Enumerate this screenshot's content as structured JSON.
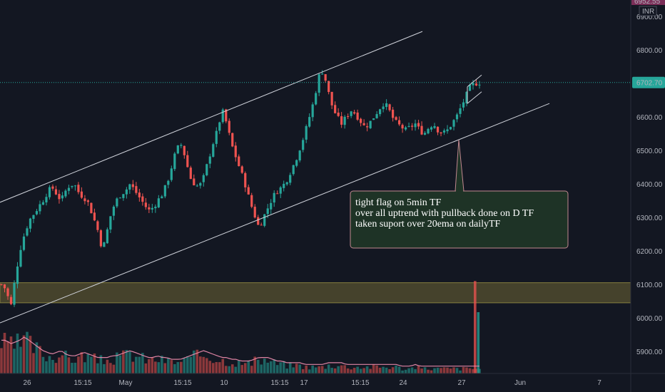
{
  "chart_data": {
    "type": "candlestick",
    "currency": "INR",
    "price_axis": {
      "ticks": [
        6900,
        6800,
        6700,
        6600,
        6500,
        6400,
        6300,
        6200,
        6100,
        6000,
        5900
      ],
      "tick_labels": [
        "6900.00",
        "6800.00",
        "6700.00",
        "6600.00",
        "6500.00",
        "6400.00",
        "6300.00",
        "6200.00",
        "6100.00",
        "6000.00",
        "5900.00"
      ],
      "top_partial_label": "6952.55",
      "current_price": 6702.7,
      "current_price_label": "6702.70",
      "range": [
        5835,
        6985
      ]
    },
    "time_axis": {
      "labels": [
        "26",
        "15:15",
        "May",
        "15:15",
        "10",
        "15:15",
        "17",
        "15:15",
        "24",
        "27",
        "Jun",
        "7"
      ]
    },
    "support_zone": {
      "low": 6045,
      "high": 6105
    },
    "channel": {
      "upper": {
        "from": 6345,
        "to": 6855
      },
      "lower": {
        "from": 5985,
        "to": 6640
      }
    },
    "flag": {
      "upper": [
        6690,
        6725
      ],
      "lower": [
        6640,
        6675
      ]
    },
    "annotation": {
      "lines": [
        "tight flag on 5min TF",
        "over all uptrend with pullback done on D TF",
        "taken suport over 20ema on dailyTF"
      ]
    },
    "series_path": [
      6100,
      6085,
      6030,
      6120,
      6200,
      6250,
      6290,
      6310,
      6330,
      6350,
      6375,
      6390,
      6370,
      6350,
      6380,
      6400,
      6395,
      6370,
      6360,
      6340,
      6300,
      6260,
      6200,
      6260,
      6320,
      6350,
      6370,
      6380,
      6400,
      6380,
      6360,
      6340,
      6320,
      6330,
      6350,
      6370,
      6400,
      6450,
      6500,
      6520,
      6480,
      6420,
      6400,
      6390,
      6420,
      6470,
      6520,
      6560,
      6620,
      6580,
      6520,
      6480,
      6440,
      6400,
      6350,
      6310,
      6270,
      6300,
      6330,
      6360,
      6380,
      6390,
      6410,
      6440,
      6470,
      6510,
      6550,
      6600,
      6650,
      6720,
      6740,
      6680,
      6630,
      6600,
      6580,
      6600,
      6620,
      6610,
      6590,
      6570,
      6580,
      6600,
      6620,
      6640,
      6630,
      6600,
      6580,
      6570,
      6560,
      6570,
      6580,
      6560,
      6550,
      6570,
      6580,
      6560,
      6550,
      6560,
      6580,
      6600,
      6630,
      6660,
      6690,
      6700,
      6703
    ],
    "volume_path": [
      18,
      18,
      16,
      17,
      18,
      20,
      18,
      16,
      14,
      12,
      11,
      10,
      11,
      12,
      10,
      9,
      9,
      10,
      11,
      10,
      9,
      8,
      8,
      8,
      9,
      9,
      10,
      11,
      12,
      11,
      10,
      9,
      8,
      8,
      9,
      8,
      8,
      7,
      7,
      7,
      8,
      9,
      10,
      11,
      12,
      11,
      10,
      9,
      8,
      8,
      7,
      7,
      6,
      6,
      6,
      7,
      8,
      8,
      8,
      7,
      6,
      6,
      5,
      5,
      5,
      5,
      4,
      4,
      4,
      4,
      4,
      5,
      5,
      5,
      5,
      4,
      4,
      4,
      4,
      4,
      4,
      4,
      4,
      4,
      4,
      4,
      4,
      3,
      3,
      3,
      4,
      3,
      3,
      3,
      3,
      3,
      3,
      3,
      3,
      3,
      3,
      3,
      3,
      3,
      3
    ],
    "volume_spike_bar": "27"
  },
  "colors": {
    "background": "#131722",
    "up": "#26a69a",
    "down": "#ef5350",
    "zone_fill": "#4e4a2e",
    "zone_border": "#9a9045",
    "channel": "#d1d4dc",
    "price_line": "#26a69a",
    "price_label_bg": "#26a69a",
    "top_label_bg": "#7b2e58",
    "ma_line": "#f48fb1",
    "annotation_bg": "#1e3326",
    "annotation_border": "#c28890",
    "text": "#b2b5be"
  }
}
